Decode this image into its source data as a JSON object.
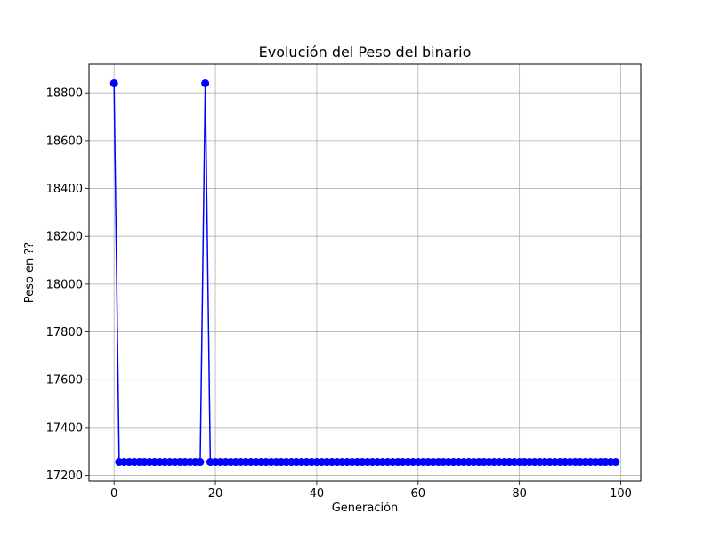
{
  "chart_data": {
    "type": "line",
    "title": "Evolución del Peso del binario",
    "xlabel": "Generación",
    "ylabel": "Peso en ??",
    "xlim": [
      -4.95,
      103.95
    ],
    "ylim": [
      17176,
      18920
    ],
    "grid": true,
    "marker": "circle",
    "xticks": [
      0,
      20,
      40,
      60,
      80,
      100
    ],
    "yticks": [
      17200,
      17400,
      17600,
      17800,
      18000,
      18200,
      18400,
      18600,
      18800
    ],
    "xtick_labels": [
      "0",
      "20",
      "40",
      "60",
      "80",
      "100"
    ],
    "ytick_labels": [
      "17200",
      "17400",
      "17600",
      "17800",
      "18000",
      "18200",
      "18400",
      "18600",
      "18800"
    ],
    "series": [
      {
        "color": "#0000ff",
        "x": [
          0,
          1,
          2,
          3,
          4,
          5,
          6,
          7,
          8,
          9,
          10,
          11,
          12,
          13,
          14,
          15,
          16,
          17,
          18,
          19,
          20,
          21,
          22,
          23,
          24,
          25,
          26,
          27,
          28,
          29,
          30,
          31,
          32,
          33,
          34,
          35,
          36,
          37,
          38,
          39,
          40,
          41,
          42,
          43,
          44,
          45,
          46,
          47,
          48,
          49,
          50,
          51,
          52,
          53,
          54,
          55,
          56,
          57,
          58,
          59,
          60,
          61,
          62,
          63,
          64,
          65,
          66,
          67,
          68,
          69,
          70,
          71,
          72,
          73,
          74,
          75,
          76,
          77,
          78,
          79,
          80,
          81,
          82,
          83,
          84,
          85,
          86,
          87,
          88,
          89,
          90,
          91,
          92,
          93,
          94,
          95,
          96,
          97,
          98,
          99
        ],
        "y": [
          18840,
          17256,
          17256,
          17256,
          17256,
          17256,
          17256,
          17256,
          17256,
          17256,
          17256,
          17256,
          17256,
          17256,
          17256,
          17256,
          17256,
          17256,
          18840,
          17256,
          17256,
          17256,
          17256,
          17256,
          17256,
          17256,
          17256,
          17256,
          17256,
          17256,
          17256,
          17256,
          17256,
          17256,
          17256,
          17256,
          17256,
          17256,
          17256,
          17256,
          17256,
          17256,
          17256,
          17256,
          17256,
          17256,
          17256,
          17256,
          17256,
          17256,
          17256,
          17256,
          17256,
          17256,
          17256,
          17256,
          17256,
          17256,
          17256,
          17256,
          17256,
          17256,
          17256,
          17256,
          17256,
          17256,
          17256,
          17256,
          17256,
          17256,
          17256,
          17256,
          17256,
          17256,
          17256,
          17256,
          17256,
          17256,
          17256,
          17256,
          17256,
          17256,
          17256,
          17256,
          17256,
          17256,
          17256,
          17256,
          17256,
          17256,
          17256,
          17256,
          17256,
          17256,
          17256,
          17256,
          17256,
          17256,
          17256,
          17256
        ]
      }
    ]
  }
}
